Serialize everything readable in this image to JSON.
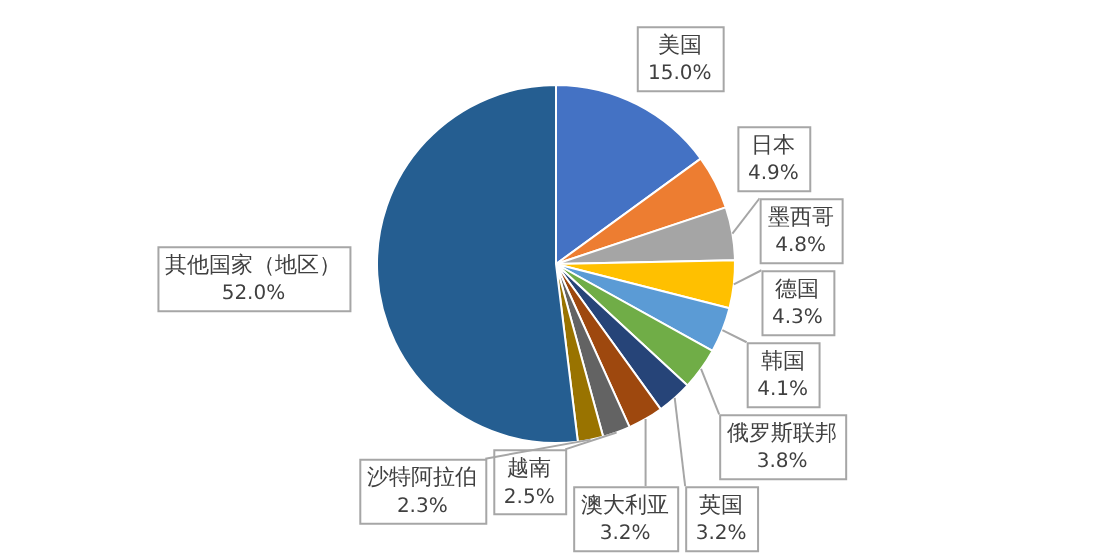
{
  "chart_data": {
    "type": "pie",
    "categories": [
      "美国",
      "日本",
      "墨西哥",
      "德国",
      "韩国",
      "俄罗斯联邦",
      "英国",
      "澳大利亚",
      "越南",
      "沙特阿拉伯",
      "其他国家（地区）"
    ],
    "values": [
      15.0,
      4.9,
      4.8,
      4.3,
      4.1,
      3.8,
      3.2,
      3.2,
      2.5,
      2.3,
      52.0
    ],
    "value_labels": [
      "15.0%",
      "4.9%",
      "4.8%",
      "4.3%",
      "4.1%",
      "3.8%",
      "3.2%",
      "3.2%",
      "2.5%",
      "2.3%",
      "52.0%"
    ],
    "colors": [
      "#4472c4",
      "#ed7d31",
      "#a5a5a5",
      "#ffc000",
      "#5b9bd5",
      "#70ad47",
      "#264478",
      "#9e480e",
      "#636363",
      "#997300",
      "#255e91"
    ],
    "legend": false
  }
}
